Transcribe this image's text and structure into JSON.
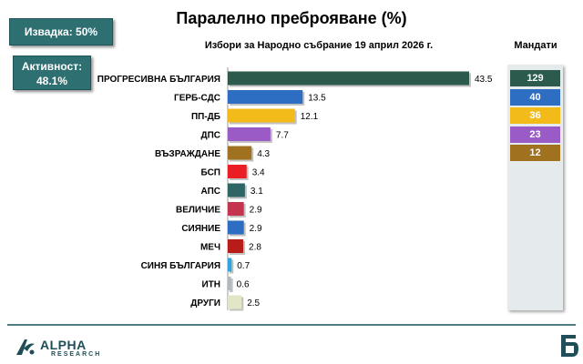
{
  "header": {
    "title": "Паралелно преброяване (%)",
    "subtitle": "Избори за Народно събрание 19 април 2026 г.",
    "sample_label": "Извадка: 50%",
    "turnout_label": "Активност:",
    "turnout_value": "48.1%",
    "mandates_title": "Мандати"
  },
  "chart_data": {
    "type": "bar",
    "orientation": "horizontal",
    "title": "Паралелно преброяване (%)",
    "subtitle": "Избори за Народно събрание 19 април 2026 г.",
    "xlim": [
      0,
      45
    ],
    "categories": [
      "ПРОГРЕСИВНА БЪЛГАРИЯ",
      "ГЕРБ-СДС",
      "ПП-ДБ",
      "ДПС",
      "ВЪЗРАЖДАНЕ",
      "БСП",
      "АПС",
      "ВЕЛИЧИЕ",
      "СИЯНИЕ",
      "МЕЧ",
      "СИНЯ БЪЛГАРИЯ",
      "ИТН",
      "ДРУГИ"
    ],
    "values": [
      43.5,
      13.5,
      12.1,
      7.7,
      4.3,
      3.4,
      3.1,
      2.9,
      2.9,
      2.8,
      0.7,
      0.6,
      2.5
    ],
    "value_labels": [
      "43.5",
      "13.5",
      "12.1",
      "7.7",
      "4.3",
      "3.4",
      "3.1",
      "2.9",
      "2.9",
      "2.8",
      "0.7",
      "0.6",
      "2.5"
    ],
    "colors": [
      "#2c5a4c",
      "#2d6ec3",
      "#f3bb1a",
      "#9b5bc6",
      "#a0711e",
      "#ea1c24",
      "#2e6565",
      "#c4344e",
      "#2d6ec3",
      "#b81c18",
      "#2fa6dc",
      "#aeb9c2",
      "#e3e5c7"
    ],
    "mandates": {
      "title": "Мандати",
      "parties": [
        "ПРОГРЕСИВНА БЪЛГАРИЯ",
        "ГЕРБ-СДС",
        "ПП-ДБ",
        "ДПС",
        "ВЪЗРАЖДАНЕ"
      ],
      "values": [
        129,
        40,
        36,
        23,
        12
      ],
      "labels": [
        "129",
        "40",
        "36",
        "23",
        "12"
      ],
      "colors": [
        "#2c5a4c",
        "#2d6ec3",
        "#f3bb1a",
        "#9b5bc6",
        "#a0711e"
      ]
    }
  },
  "footer": {
    "logo_text": "ALPHA",
    "logo_subtext": "RESEARCH",
    "brand_accent": "#1f4e57",
    "bnt_logo_color": "#1f4e57",
    "divider_color": "#4f7f85"
  }
}
